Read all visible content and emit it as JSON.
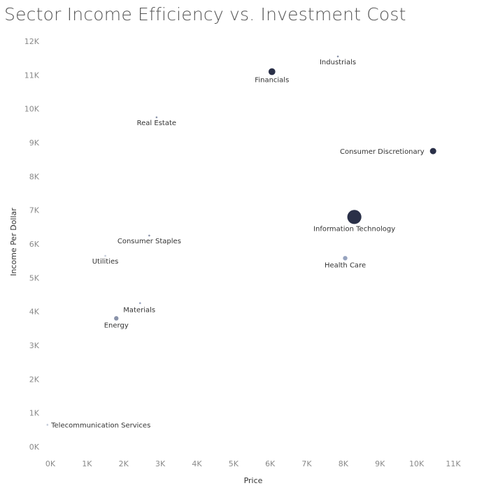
{
  "chart_data": {
    "type": "scatter",
    "title": "Sector Income Efficiency vs. Investment Cost",
    "xlabel": "Price",
    "ylabel": "Income Per Dollar",
    "xlim": [
      0,
      11000
    ],
    "ylim": [
      0,
      12000
    ],
    "x_ticks": [
      "0K",
      "1K",
      "2K",
      "3K",
      "4K",
      "5K",
      "6K",
      "7K",
      "8K",
      "9K",
      "10K",
      "11K"
    ],
    "y_ticks": [
      "0K",
      "1K",
      "2K",
      "3K",
      "4K",
      "5K",
      "6K",
      "7K",
      "8K",
      "9K",
      "10K",
      "11K",
      "12K"
    ],
    "grid": false,
    "legend": "none",
    "size_encoding": "relative bubble size",
    "colors": {
      "dark": "#2a3048",
      "mid": "#5a6585",
      "light": "#96a3bf",
      "faint": "#c3cad9"
    },
    "points": [
      {
        "name": "Industrials",
        "x": 7850,
        "y": 11550,
        "size": 1,
        "color": "#8a93aa",
        "label_pos": "below"
      },
      {
        "name": "Financials",
        "x": 6050,
        "y": 11100,
        "size": 14,
        "color": "#2a3048",
        "label_pos": "below"
      },
      {
        "name": "Real Estate",
        "x": 2900,
        "y": 9750,
        "size": 1,
        "color": "#8a93aa",
        "label_pos": "below"
      },
      {
        "name": "Consumer Discretionary",
        "x": 10450,
        "y": 8750,
        "size": 12,
        "color": "#2a3048",
        "label_pos": "left"
      },
      {
        "name": "Information Technology",
        "x": 8300,
        "y": 6800,
        "size": 60,
        "color": "#2a3048",
        "label_pos": "below"
      },
      {
        "name": "Consumer Staples",
        "x": 2700,
        "y": 6250,
        "size": 1,
        "color": "#8a93aa",
        "label_pos": "below"
      },
      {
        "name": "Utilities",
        "x": 1500,
        "y": 5650,
        "size": 1,
        "color": "#c3cad9",
        "label_pos": "below"
      },
      {
        "name": "Health Care",
        "x": 8050,
        "y": 5580,
        "size": 6,
        "color": "#96a3bf",
        "label_pos": "below"
      },
      {
        "name": "Materials",
        "x": 2450,
        "y": 4250,
        "size": 1,
        "color": "#96a3bf",
        "label_pos": "below-right"
      },
      {
        "name": "Energy",
        "x": 1800,
        "y": 3800,
        "size": 6,
        "color": "#8a93aa",
        "label_pos": "below"
      },
      {
        "name": "Telecommunication Services",
        "x": -80,
        "y": 650,
        "size": 1,
        "color": "#c3cad9",
        "label_pos": "right"
      }
    ]
  }
}
